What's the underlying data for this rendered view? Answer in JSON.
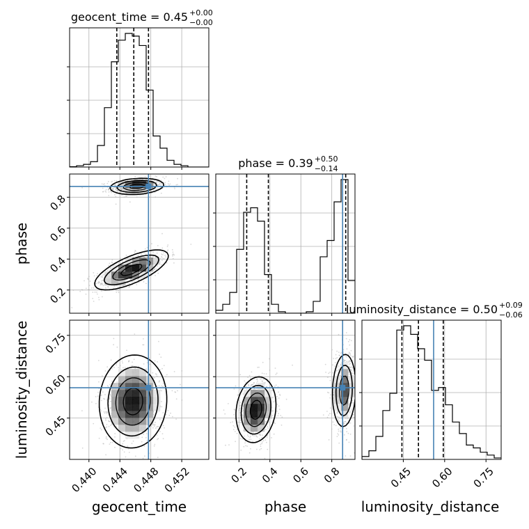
{
  "chart_data": {
    "type": "corner",
    "parameters": [
      {
        "name": "geocent_time",
        "axis_label": "geocent_time",
        "title_main": "geocent_time = 0.45",
        "err_plus": "+0.00",
        "err_minus": "−0.00",
        "range": [
          0.4375,
          0.4555
        ],
        "ticks": [
          0.44,
          0.444,
          0.448,
          0.452
        ],
        "tick_labels": [
          "0.440",
          "0.444",
          "0.448",
          "0.452"
        ],
        "quantiles": [
          0.4436,
          0.4458,
          0.4477
        ],
        "truth": 0.4477,
        "hist_edges_start": 0.4375,
        "hist_bin_width": 0.0009,
        "hist_values": [
          0.3,
          1,
          2,
          4,
          16,
          44,
          78,
          94,
          99,
          97,
          90,
          57,
          23,
          14,
          5,
          2,
          1,
          0,
          0,
          0
        ]
      },
      {
        "name": "phase",
        "axis_label": "phase",
        "title_main": "phase = 0.39",
        "err_plus": "+0.50",
        "err_minus": "−0.14",
        "range": [
          0.05,
          0.95
        ],
        "ticks": [
          0.2,
          0.4,
          0.6,
          0.8
        ],
        "tick_labels": [
          "0.2",
          "0.4",
          "0.6",
          "0.8"
        ],
        "quantiles": [
          0.25,
          0.39,
          0.89
        ],
        "truth": 0.87,
        "hist_edges_start": 0.05,
        "hist_bin_width": 0.045,
        "hist_values": [
          2,
          6,
          14,
          43,
          68,
          71,
          62,
          26,
          6,
          1,
          0,
          0,
          0,
          1,
          8,
          38,
          49,
          75,
          90,
          22
        ]
      },
      {
        "name": "luminosity_distance",
        "axis_label": "luminosity_distance",
        "title_main": "luminosity_distance = 0.50",
        "err_plus": "+0.09",
        "err_minus": "−0.06",
        "range": [
          0.3,
          0.805
        ],
        "ticks": [
          0.45,
          0.6,
          0.75
        ],
        "tick_labels": [
          "0.45",
          "0.60",
          "0.75"
        ],
        "quantiles": [
          0.445,
          0.505,
          0.595
        ],
        "truth": 0.56,
        "hist_edges_start": 0.3,
        "hist_bin_width": 0.02525,
        "hist_values": [
          2,
          6,
          16,
          34,
          46,
          90,
          93,
          87,
          77,
          69,
          48,
          50,
          38,
          26,
          18,
          10,
          8,
          5,
          3,
          1
        ]
      }
    ],
    "pairs": [
      {
        "x": "geocent_time",
        "y": "phase",
        "modes": [
          {
            "cx": 0.4462,
            "cy": 0.87,
            "sx": 0.00175,
            "sy": 0.026,
            "rho": 0.2,
            "weight": 1.0
          },
          {
            "cx": 0.4455,
            "cy": 0.33,
            "sx": 0.0024,
            "sy": 0.065,
            "rho": 0.7,
            "weight": 1.0
          }
        ]
      },
      {
        "x": "geocent_time",
        "y": "luminosity_distance",
        "modes": [
          {
            "cx": 0.4457,
            "cy": 0.51,
            "sx": 0.0022,
            "sy": 0.085,
            "rho": 0.05,
            "weight": 1.0
          }
        ]
      },
      {
        "x": "phase",
        "y": "luminosity_distance",
        "modes": [
          {
            "cx": 0.31,
            "cy": 0.48,
            "sx": 0.065,
            "sy": 0.06,
            "rho": 0.15,
            "weight": 1.0
          },
          {
            "cx": 0.88,
            "cy": 0.55,
            "sx": 0.04,
            "sy": 0.07,
            "rho": 0.1,
            "weight": 0.8
          }
        ]
      }
    ],
    "colors": {
      "line": "#000000",
      "truth": "#4682b4",
      "grid": "#b0b0b0",
      "scatter": "#b4b4b4"
    },
    "grid": true
  }
}
